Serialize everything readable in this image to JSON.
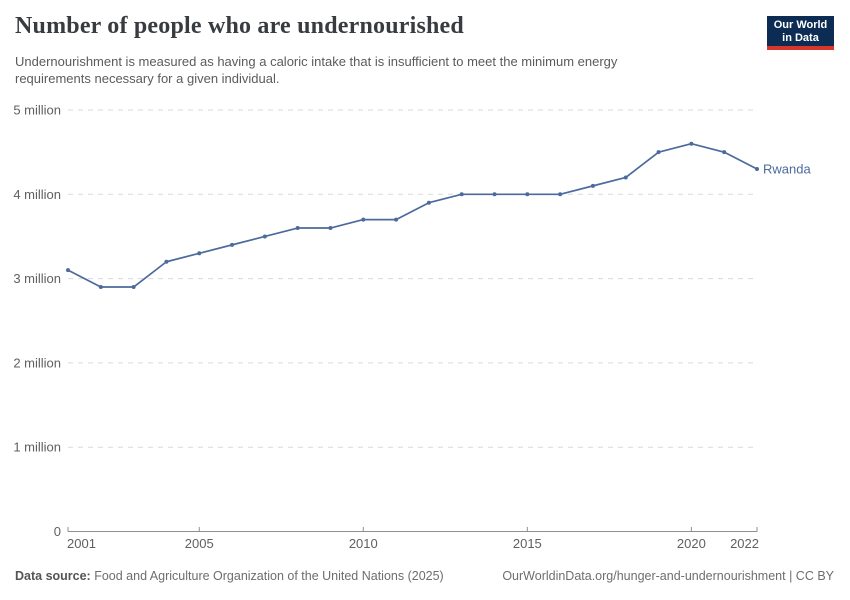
{
  "header": {
    "title": "Number of people who are undernourished",
    "subtitle": "Undernourishment is measured as having a caloric intake that is insufficient to meet the minimum energy\nrequirements necessary for a given individual.",
    "logo": {
      "line1": "Our World",
      "line2": "in Data",
      "bg_color": "#0d2c54",
      "accent_color": "#d7362b"
    }
  },
  "chart_data": {
    "type": "line",
    "title": "Number of people who are undernourished",
    "xlabel": "",
    "ylabel": "",
    "unit": "people",
    "xlim": [
      2001,
      2022
    ],
    "ylim_millions": [
      0,
      5
    ],
    "grid": "horizontal-dashed",
    "legend_position": "end-of-line-label",
    "x_ticks": [
      2001,
      2005,
      2010,
      2015,
      2020,
      2022
    ],
    "y_ticks": [
      {
        "value_millions": 0,
        "label": "0"
      },
      {
        "value_millions": 1,
        "label": "1 million"
      },
      {
        "value_millions": 2,
        "label": "2 million"
      },
      {
        "value_millions": 3,
        "label": "3 million"
      },
      {
        "value_millions": 4,
        "label": "4 million"
      },
      {
        "value_millions": 5,
        "label": "5 million"
      }
    ],
    "series": [
      {
        "name": "Rwanda",
        "color": "#4C6A9C",
        "x": [
          2001,
          2002,
          2003,
          2004,
          2005,
          2006,
          2007,
          2008,
          2009,
          2010,
          2011,
          2012,
          2013,
          2014,
          2015,
          2016,
          2017,
          2018,
          2019,
          2020,
          2021,
          2022
        ],
        "values_millions": [
          3.1,
          2.9,
          2.9,
          3.2,
          3.3,
          3.4,
          3.5,
          3.6,
          3.6,
          3.7,
          3.7,
          3.9,
          4.0,
          4.0,
          4.0,
          4.0,
          4.1,
          4.2,
          4.5,
          4.6,
          4.5,
          4.3
        ]
      }
    ],
    "colors": {
      "axis": "#8f8f8f",
      "gridline": "#d9d9d9",
      "tick_text": "#606060"
    }
  },
  "footer": {
    "datasource_label": "Data source:",
    "datasource_text": " Food and Agriculture Organization of the United Nations (2025)",
    "link": "OurWorldinData.org/hunger-and-undernourishment",
    "license_suffix": " | CC BY"
  }
}
